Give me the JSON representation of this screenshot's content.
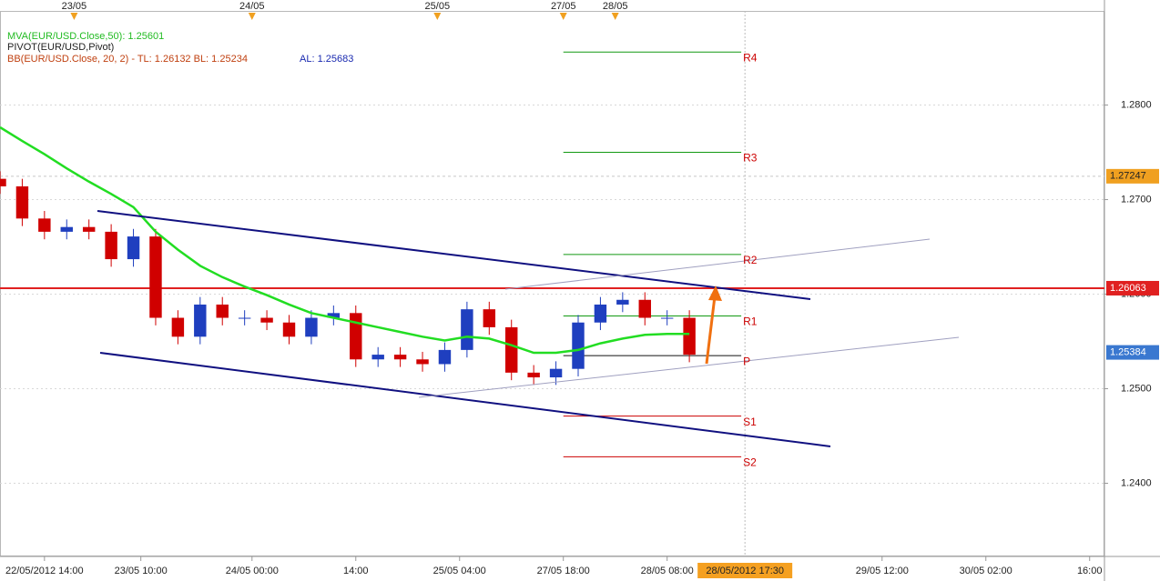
{
  "chart_data": {
    "type": "candlestick",
    "xlim": [
      -6,
      143
    ],
    "ylim": [
      1.23226,
      1.29111
    ],
    "grid": true,
    "up_color": "#1f3fbf",
    "down_color": "#d00000",
    "x": [
      -6,
      -3,
      0,
      3,
      6,
      9,
      12,
      15,
      18,
      21,
      24,
      27,
      30,
      33,
      36,
      39,
      42,
      45,
      48,
      51,
      54,
      57,
      60,
      63,
      66,
      69,
      72,
      75,
      78,
      81,
      84,
      87
    ],
    "open": [
      1.2722,
      1.2714,
      1.268,
      1.2666,
      1.2671,
      1.2666,
      1.2637,
      1.2661,
      1.2575,
      1.2555,
      1.2589,
      1.2575,
      1.2575,
      1.257,
      1.2555,
      1.2575,
      1.258,
      1.2531,
      1.2536,
      1.2531,
      1.2526,
      1.2541,
      1.2584,
      1.2565,
      1.2517,
      1.2512,
      1.2521,
      1.257,
      1.2589,
      1.2594,
      1.2575,
      1.2575
    ],
    "high": [
      1.273,
      1.2722,
      1.2688,
      1.2679,
      1.2679,
      1.2674,
      1.2669,
      1.2669,
      1.2583,
      1.2597,
      1.2597,
      1.2583,
      1.2583,
      1.2578,
      1.2583,
      1.2588,
      1.2588,
      1.2544,
      1.2544,
      1.2539,
      1.2549,
      1.2592,
      1.2592,
      1.2573,
      1.2525,
      1.2529,
      1.2578,
      1.2597,
      1.2602,
      1.2602,
      1.2583,
      1.2583
    ],
    "low": [
      1.2706,
      1.2672,
      1.2658,
      1.2658,
      1.2658,
      1.2629,
      1.2629,
      1.2567,
      1.2547,
      1.2547,
      1.2567,
      1.2567,
      1.2562,
      1.2547,
      1.2547,
      1.2567,
      1.2523,
      1.2523,
      1.2523,
      1.2518,
      1.2518,
      1.2533,
      1.2557,
      1.2509,
      1.2504,
      1.2504,
      1.2513,
      1.2562,
      1.2581,
      1.2567,
      1.2567,
      1.2528
    ],
    "close": [
      1.2714,
      1.268,
      1.2666,
      1.2671,
      1.2666,
      1.2637,
      1.2661,
      1.2575,
      1.2555,
      1.2589,
      1.2575,
      1.2575,
      1.257,
      1.2555,
      1.2575,
      1.258,
      1.2531,
      1.2536,
      1.2531,
      1.2526,
      1.2541,
      1.2584,
      1.2565,
      1.2517,
      1.2512,
      1.2521,
      1.257,
      1.2589,
      1.2594,
      1.2575,
      1.2575,
      1.2536
    ],
    "series": [
      {
        "name": "MVA(EUR/USD.Close,50): 1.25601",
        "color": "#22dd22",
        "values": [
          1.27765,
          1.2762,
          1.2748,
          1.2733,
          1.2719,
          1.2706,
          1.2692,
          1.2666,
          1.2647,
          1.263,
          1.2618,
          1.2608,
          1.2599,
          1.2589,
          1.258,
          1.2575,
          1.257,
          1.2565,
          1.256,
          1.2555,
          1.2551,
          1.2555,
          1.2553,
          1.2546,
          1.2538,
          1.2538,
          1.2541,
          1.2548,
          1.2553,
          1.2557,
          1.2558,
          1.2558
        ]
      }
    ],
    "indicator_labels": [
      "PIVOT(EUR/USD,Pivot)",
      "BB(EUR/USD.Close, 20, 2) -  TL: 1.26132  BL: 1.25234",
      "AL: 1.25683"
    ],
    "pivot_range": [
      70,
      94
    ],
    "pivots": [
      {
        "label": "R4",
        "value": 1.2856,
        "color": "#119911"
      },
      {
        "label": "R3",
        "value": 1.275,
        "color": "#119911"
      },
      {
        "label": "R2",
        "value": 1.2642,
        "color": "#119911"
      },
      {
        "label": "R1",
        "value": 1.2577,
        "color": "#119911"
      },
      {
        "label": "P",
        "value": 1.2535,
        "color": "#111111"
      },
      {
        "label": "S1",
        "value": 1.2471,
        "color": "#cc0000"
      },
      {
        "label": "S2",
        "value": 1.2428,
        "color": "#cc0000"
      }
    ],
    "price_markers": [
      {
        "value": 1.27247,
        "color": "#f0a020",
        "line": "dashed"
      },
      {
        "value": 1.26063,
        "color": "#e02020",
        "line": "solid"
      },
      {
        "value": 1.25384,
        "color": "#3a78d0",
        "line": "none"
      }
    ],
    "yticks": [
      {
        "value": 1.24,
        "label": "1.2400"
      },
      {
        "value": 1.25,
        "label": "1.2500"
      },
      {
        "value": 1.26,
        "label": "1.2600"
      },
      {
        "value": 1.27,
        "label": "1.2700"
      },
      {
        "value": 1.28,
        "label": "1.2800"
      }
    ],
    "xticks": [
      {
        "value": 0,
        "label": "22/05/2012 14:00"
      },
      {
        "value": 13,
        "label": "23/05 10:00"
      },
      {
        "value": 28,
        "label": "24/05 00:00"
      },
      {
        "value": 42,
        "label": "14:00"
      },
      {
        "value": 56,
        "label": "25/05 04:00"
      },
      {
        "value": 70,
        "label": "27/05 18:00"
      },
      {
        "value": 84,
        "label": "28/05 08:00"
      },
      {
        "value": 113,
        "label": "29/05 12:00"
      },
      {
        "value": 127,
        "label": "30/05 02:00"
      },
      {
        "value": 141,
        "label": "16:00"
      }
    ],
    "cursor": {
      "value": 94.5,
      "label": "28/05/2012 17:30"
    },
    "top_markers": [
      {
        "value": 4,
        "label": "23/05"
      },
      {
        "value": 28,
        "label": "24/05"
      },
      {
        "value": 53,
        "label": "25/05"
      },
      {
        "value": 70,
        "label": "27/05"
      },
      {
        "value": 77,
        "label": "28/05"
      }
    ]
  }
}
